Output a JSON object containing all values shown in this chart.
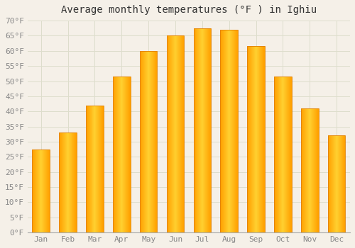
{
  "title": "Average monthly temperatures (°F ) in Ighiu",
  "months": [
    "Jan",
    "Feb",
    "Mar",
    "Apr",
    "May",
    "Jun",
    "Jul",
    "Aug",
    "Sep",
    "Oct",
    "Nov",
    "Dec"
  ],
  "values": [
    27.5,
    33.0,
    42.0,
    51.5,
    60.0,
    65.0,
    67.5,
    67.0,
    61.5,
    51.5,
    41.0,
    32.0
  ],
  "bar_color_top": "#FFB300",
  "bar_color_bottom": "#FFA500",
  "bar_edge_color": "#E08000",
  "background_color": "#F5F0E8",
  "plot_bg_color": "#F5F0E8",
  "grid_color": "#DDDDCC",
  "ylim": [
    0,
    70
  ],
  "yticks": [
    0,
    5,
    10,
    15,
    20,
    25,
    30,
    35,
    40,
    45,
    50,
    55,
    60,
    65,
    70
  ],
  "title_fontsize": 10,
  "tick_fontsize": 8,
  "font_family": "monospace"
}
